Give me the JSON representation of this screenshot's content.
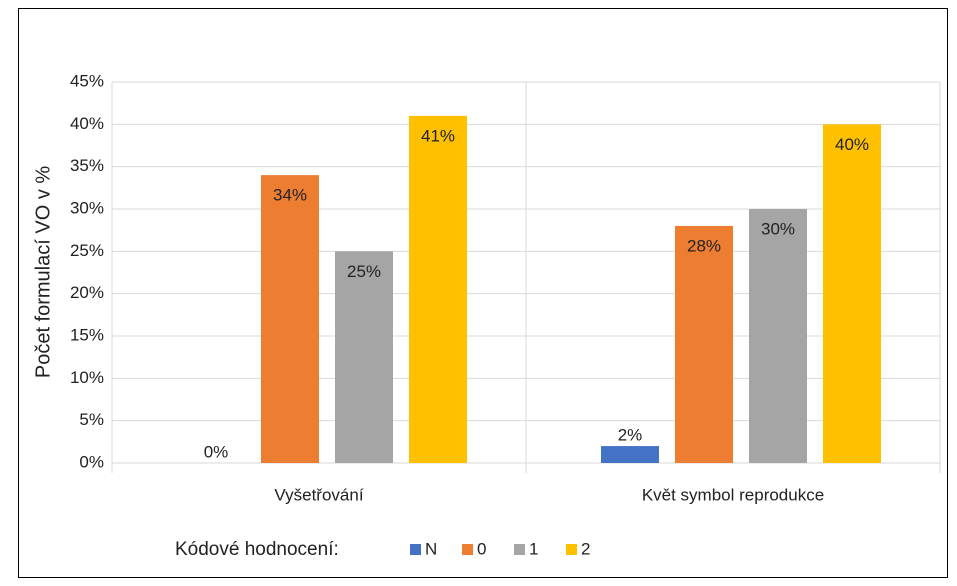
{
  "chart_data": {
    "type": "bar",
    "y_axis_label": "Počet formulací VO v %",
    "categories": [
      "Vyšetřování",
      "Květ symbol reprodukce"
    ],
    "legend_title": "Kódové hodnocení:",
    "series": [
      {
        "name": "N",
        "color": "#4472c4",
        "values": [
          0,
          2
        ],
        "value_labels": [
          "0%",
          "2%"
        ]
      },
      {
        "name": "0",
        "color": "#ed7d31",
        "values": [
          34,
          28
        ],
        "value_labels": [
          "34%",
          "28%"
        ]
      },
      {
        "name": "1",
        "color": "#a5a5a5",
        "values": [
          25,
          30
        ],
        "value_labels": [
          "25%",
          "30%"
        ]
      },
      {
        "name": "2",
        "color": "#ffc000",
        "values": [
          41,
          40
        ],
        "value_labels": [
          "41%",
          "40%"
        ]
      }
    ],
    "ylim": [
      0,
      45
    ],
    "yticks": [
      {
        "value": 0,
        "label": "0%"
      },
      {
        "value": 5,
        "label": "5%"
      },
      {
        "value": 10,
        "label": "10%"
      },
      {
        "value": 15,
        "label": "15%"
      },
      {
        "value": 20,
        "label": "20%"
      },
      {
        "value": 25,
        "label": "25%"
      },
      {
        "value": 30,
        "label": "30%"
      },
      {
        "value": 35,
        "label": "35%"
      },
      {
        "value": 40,
        "label": "40%"
      },
      {
        "value": 45,
        "label": "45%"
      }
    ],
    "grid": true,
    "legend": "bottom"
  }
}
